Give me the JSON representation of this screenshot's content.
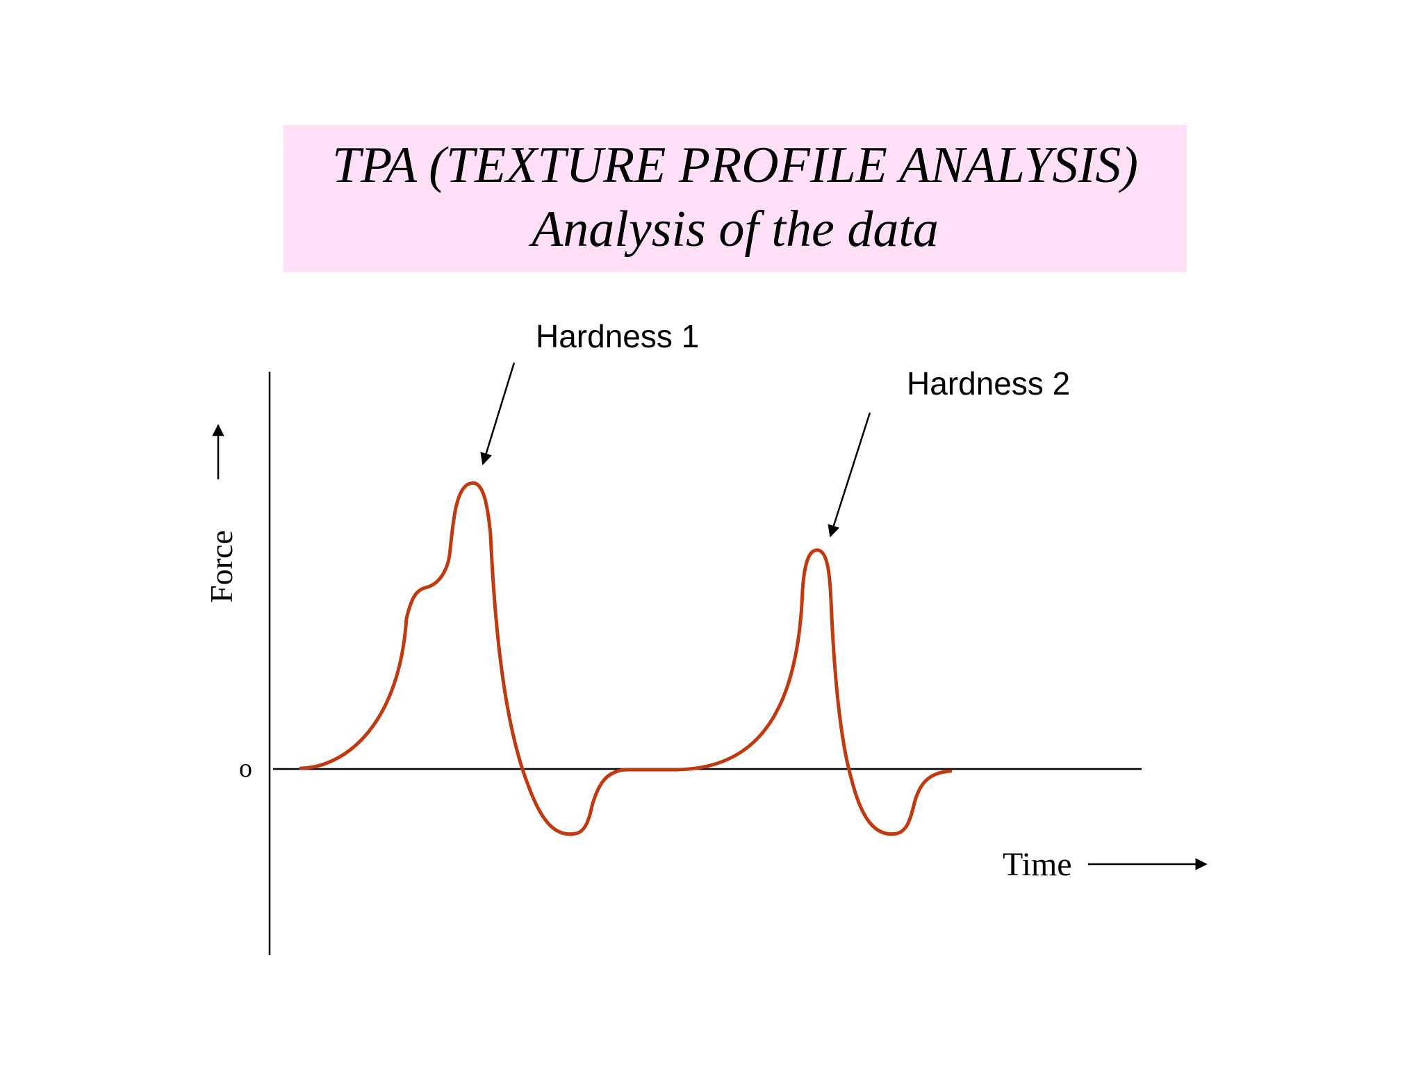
{
  "title": {
    "line1": "TPA (TEXTURE PROFILE ANALYSIS)",
    "line2": "Analysis of the data"
  },
  "diagram": {
    "y_axis_label": "Force",
    "x_axis_label": "Time",
    "origin_label": "o",
    "annotations": {
      "peak1": "Hardness 1",
      "peak2": "Hardness 2"
    }
  },
  "colors": {
    "title_background": "#ffe0f7",
    "curve": "#c0390f",
    "axes": "#000000"
  }
}
